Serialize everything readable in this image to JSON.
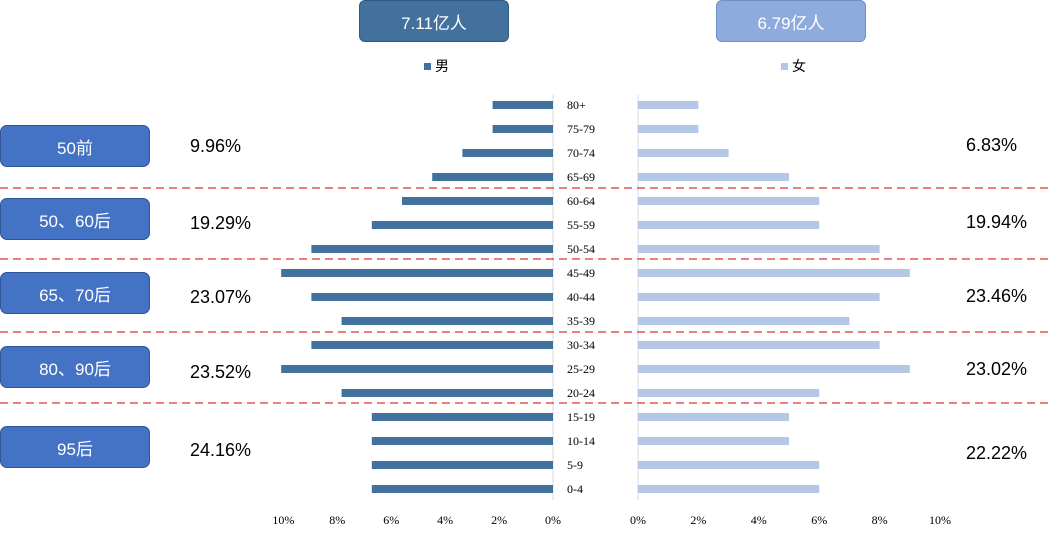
{
  "totals": {
    "male": "7.11亿人",
    "female": "6.79亿人"
  },
  "legend": {
    "male": "男",
    "female": "女"
  },
  "colors": {
    "male": "#41719c",
    "female": "#b4c7e7",
    "button": "#4472c4",
    "divider": "#e03030"
  },
  "generations": [
    {
      "label": "50前",
      "male_pct": "9.96%",
      "female_pct": "6.83%"
    },
    {
      "label": "50、60后",
      "male_pct": "19.29%",
      "female_pct": "19.94%"
    },
    {
      "label": "65、70后",
      "male_pct": "23.07%",
      "female_pct": "23.46%"
    },
    {
      "label": "80、90后",
      "male_pct": "23.52%",
      "female_pct": "23.02%"
    },
    {
      "label": "95后",
      "male_pct": "24.16%",
      "female_pct": "22.22%"
    }
  ],
  "chart_data": {
    "type": "bar",
    "orientation": "horizontal",
    "categories": [
      "80+",
      "75-79",
      "70-74",
      "65-69",
      "60-64",
      "55-59",
      "50-54",
      "45-49",
      "40-44",
      "35-39",
      "30-34",
      "25-29",
      "20-24",
      "15-19",
      "10-14",
      "5-9",
      "0-4"
    ],
    "series": [
      {
        "name": "男",
        "values": [
          2,
          2,
          3,
          4,
          5,
          6,
          8,
          9,
          8,
          7,
          8,
          9,
          7,
          6,
          6,
          6,
          6
        ]
      },
      {
        "name": "女",
        "values": [
          2,
          2,
          3,
          5,
          6,
          6,
          8,
          9,
          8,
          7,
          8,
          9,
          6,
          5,
          5,
          6,
          6
        ]
      }
    ],
    "male_ticks": [
      "10%",
      "8%",
      "6%",
      "4%",
      "2%",
      "0%"
    ],
    "female_ticks": [
      "0%",
      "2%",
      "4%",
      "6%",
      "8%",
      "10%"
    ],
    "xlim": [
      0,
      10
    ]
  }
}
